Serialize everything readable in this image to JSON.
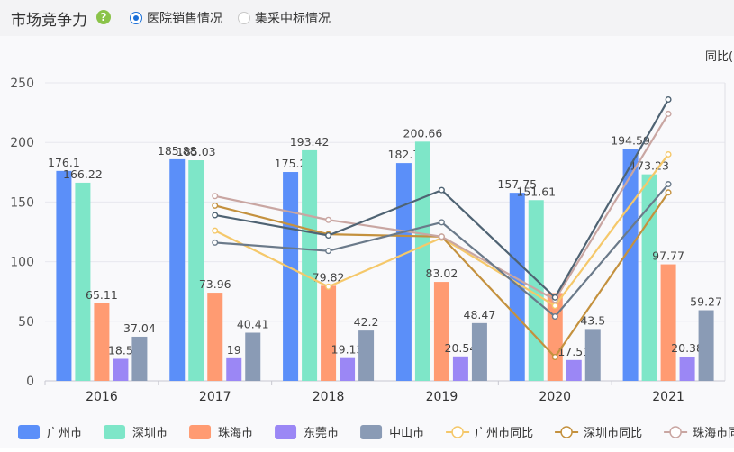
{
  "header": {
    "title": "市场竞争力",
    "help_icon": "question-icon",
    "radio_options": [
      {
        "label": "医院销售情况",
        "checked": true
      },
      {
        "label": "集采中标情况",
        "checked": false
      }
    ]
  },
  "chart_data": {
    "type": "bar",
    "categories": [
      "2016",
      "2017",
      "2018",
      "2019",
      "2020",
      "2021"
    ],
    "ylim": [
      0,
      250
    ],
    "yticks": [
      0,
      50,
      100,
      150,
      200,
      250
    ],
    "right_axis_label": "同比(",
    "series": [
      {
        "name": "广州市",
        "type": "bar",
        "color": "#5b8ff9",
        "values": [
          176.1,
          185.88,
          175.2,
          182.7,
          157.75,
          194.59
        ],
        "labels": [
          "176.1",
          "185.88",
          "175.2",
          "182.7",
          "157.75",
          "194.59"
        ]
      },
      {
        "name": "深圳市",
        "type": "bar",
        "color": "#7ee6c8",
        "values": [
          166.22,
          185.03,
          193.42,
          200.66,
          151.61,
          173.23
        ],
        "labels": [
          "166.22",
          "185.03",
          "193.42",
          "200.66",
          "151.61",
          "173.23"
        ]
      },
      {
        "name": "珠海市",
        "type": "bar",
        "color": "#ff9b72",
        "values": [
          65.11,
          73.96,
          79.82,
          83.02,
          73.67,
          97.77
        ],
        "labels": [
          "65.11",
          "73.96",
          "79.82",
          "83.02",
          "",
          "97.77"
        ]
      },
      {
        "name": "东莞市",
        "type": "bar",
        "color": "#9b87f5",
        "values": [
          18.5,
          19,
          19.13,
          20.54,
          17.51,
          20.38
        ],
        "labels": [
          "18.5",
          "19",
          "19.13",
          "20.54",
          "17.51",
          "20.38"
        ]
      },
      {
        "name": "中山市",
        "type": "bar",
        "color": "#8a9bb5",
        "values": [
          37.04,
          40.41,
          42.2,
          48.47,
          43.5,
          59.27
        ],
        "labels": [
          "37.04",
          "40.41",
          "42.2",
          "48.47",
          "43.5",
          "59.27"
        ]
      },
      {
        "name": "广州市同比",
        "type": "line",
        "color": "#f5c86a",
        "values": [
          null,
          126,
          79,
          120,
          63,
          190
        ]
      },
      {
        "name": "深圳市同比",
        "type": "line",
        "color": "#c4913e",
        "values": [
          null,
          147,
          123,
          121,
          20,
          158
        ]
      },
      {
        "name": "珠海市同比",
        "type": "line",
        "color": "#c9a6a2",
        "values": [
          null,
          155,
          135,
          121,
          68,
          224
        ]
      },
      {
        "name": "",
        "type": "line",
        "color": "#4f6373",
        "values": [
          null,
          139,
          122,
          160,
          70,
          236
        ]
      },
      {
        "name": "",
        "type": "line",
        "color": "#6b7a8a",
        "values": [
          null,
          116,
          109,
          133,
          54,
          165
        ]
      }
    ],
    "legend_position": "bottom",
    "grid": true
  }
}
